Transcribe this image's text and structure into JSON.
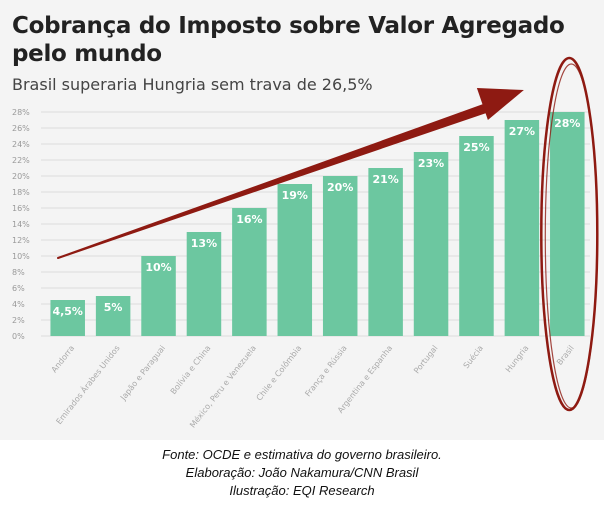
{
  "header": {
    "title": "Cobrança do Imposto sobre Valor Agregado pelo mundo",
    "subtitle": "Brasil superaria Hungria sem trava de 26,5%"
  },
  "chart_data": {
    "type": "bar",
    "categories": [
      "Andorra",
      "Emirados Árabes Unidos",
      "Japão e Paraguai",
      "Bolívia e China",
      "México, Peru e Venezuela",
      "Chile e Colômbia",
      "França e Rússia",
      "Argentina e Espanha",
      "Portugal",
      "Suécia",
      "Hungria",
      "Brasil"
    ],
    "values": [
      4.5,
      5,
      10,
      13,
      16,
      19,
      20,
      21,
      23,
      25,
      27,
      28
    ],
    "data_labels": [
      "4,5%",
      "5%",
      "10%",
      "13%",
      "16%",
      "19%",
      "20%",
      "21%",
      "23%",
      "25%",
      "27%",
      "28%"
    ],
    "y_ticks": [
      "0%",
      "2%",
      "4%",
      "6%",
      "8%",
      "10%",
      "12%",
      "14%",
      "16%",
      "18%",
      "20%",
      "22%",
      "24%",
      "26%",
      "28%"
    ],
    "ylim": [
      0,
      28
    ],
    "grid": true,
    "title": "Cobrança do Imposto sobre Valor Agregado pelo mundo",
    "subtitle": "Brasil superaria Hungria sem trava de 26,5%",
    "annotations": [
      "red arrow rising toward Brasil",
      "red ellipse around Brasil bar"
    ]
  },
  "colors": {
    "bar": "#6cc7a0",
    "annotation": "#8e1a12",
    "grid": "#dddddd",
    "background": "#f4f4f4"
  },
  "footer": {
    "source": "Fonte: OCDE e estimativa do governo brasileiro.",
    "author": "Elaboração: João Nakamura/CNN Brasil",
    "illustration": "Ilustração: EQI Research"
  }
}
